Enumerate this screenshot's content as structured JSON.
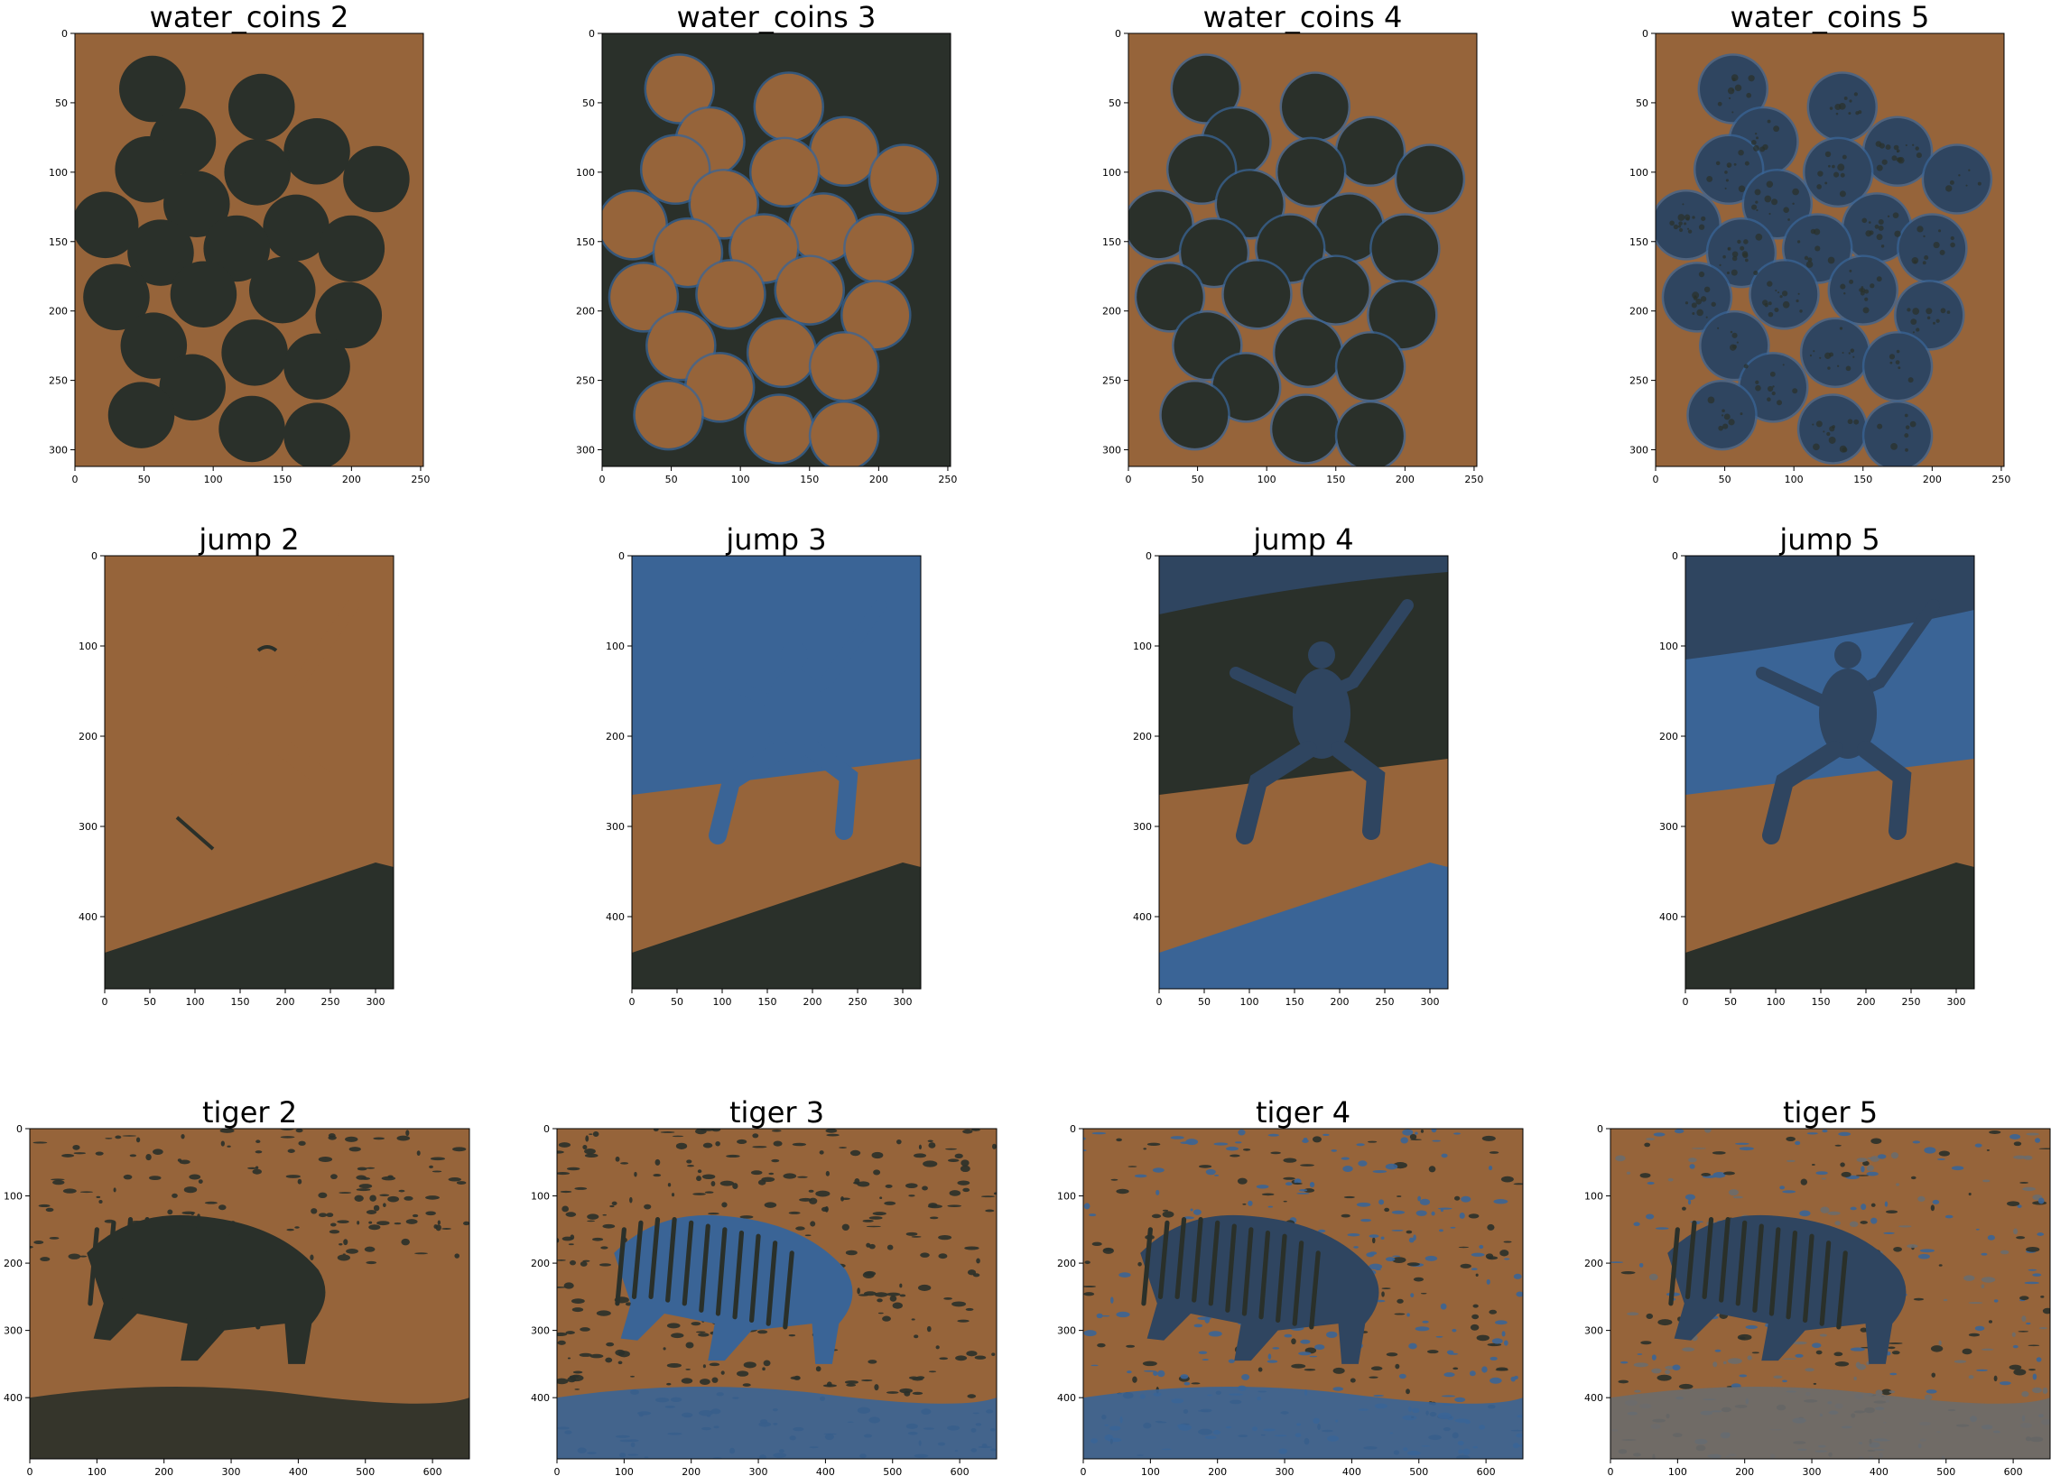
{
  "colors": {
    "background": "#ffffff",
    "brown": "#96643a",
    "dark": "#2a302a",
    "blue": "#3a6496",
    "slate": "#2f4560",
    "gray": "#6b6b6b"
  },
  "chart_data": [
    {
      "type": "heatmap",
      "title": "water_coins 2",
      "image": "coins",
      "k": 2,
      "x_ticks": [
        "0",
        "50",
        "100",
        "150",
        "200",
        "250"
      ],
      "y_ticks": [
        "0",
        "50",
        "100",
        "150",
        "200",
        "250",
        "300"
      ],
      "xlim": [
        0,
        252
      ],
      "ylim": [
        312,
        0
      ],
      "palette": {
        "bg": "brown",
        "coin": "dark"
      }
    },
    {
      "type": "heatmap",
      "title": "water_coins 3",
      "image": "coins",
      "k": 3,
      "x_ticks": [
        "0",
        "50",
        "100",
        "150",
        "200",
        "250"
      ],
      "y_ticks": [
        "0",
        "50",
        "100",
        "150",
        "200",
        "250",
        "300"
      ],
      "xlim": [
        0,
        252
      ],
      "ylim": [
        312,
        0
      ],
      "palette": {
        "bg": "dark",
        "coin": "brown",
        "edge": "blue"
      }
    },
    {
      "type": "heatmap",
      "title": "water_coins 4",
      "image": "coins",
      "k": 4,
      "x_ticks": [
        "0",
        "50",
        "100",
        "150",
        "200",
        "250"
      ],
      "y_ticks": [
        "0",
        "50",
        "100",
        "150",
        "200",
        "250",
        "300"
      ],
      "xlim": [
        0,
        252
      ],
      "ylim": [
        312,
        0
      ],
      "palette": {
        "bg": "brown",
        "coin": "dark",
        "edge": "blue"
      }
    },
    {
      "type": "heatmap",
      "title": "water_coins 5",
      "image": "coins",
      "k": 5,
      "x_ticks": [
        "0",
        "50",
        "100",
        "150",
        "200",
        "250"
      ],
      "y_ticks": [
        "0",
        "50",
        "100",
        "150",
        "200",
        "250",
        "300"
      ],
      "xlim": [
        0,
        252
      ],
      "ylim": [
        312,
        0
      ],
      "palette": {
        "bg": "brown",
        "coin": "slate",
        "edge": "blue"
      }
    },
    {
      "type": "heatmap",
      "title": "jump 2",
      "image": "jump",
      "k": 2,
      "x_ticks": [
        "0",
        "50",
        "100",
        "150",
        "200",
        "250",
        "300"
      ],
      "y_ticks": [
        "0",
        "100",
        "200",
        "300",
        "400"
      ],
      "xlim": [
        0,
        320
      ],
      "ylim": [
        480,
        0
      ],
      "palette": {
        "sky": "brown",
        "ground": "brown",
        "shadow": "dark",
        "person": "brown"
      }
    },
    {
      "type": "heatmap",
      "title": "jump 3",
      "image": "jump",
      "k": 3,
      "x_ticks": [
        "0",
        "50",
        "100",
        "150",
        "200",
        "250",
        "300"
      ],
      "y_ticks": [
        "0",
        "100",
        "200",
        "300",
        "400"
      ],
      "xlim": [
        0,
        320
      ],
      "ylim": [
        480,
        0
      ],
      "palette": {
        "sky": "blue",
        "ground": "brown",
        "shadow": "dark",
        "person": "blue"
      }
    },
    {
      "type": "heatmap",
      "title": "jump 4",
      "image": "jump",
      "k": 4,
      "x_ticks": [
        "0",
        "50",
        "100",
        "150",
        "200",
        "250",
        "300"
      ],
      "y_ticks": [
        "0",
        "100",
        "200",
        "300",
        "400"
      ],
      "xlim": [
        0,
        320
      ],
      "ylim": [
        480,
        0
      ],
      "palette": {
        "top": "slate",
        "sky": "dark",
        "ground": "brown",
        "shadow": "blue",
        "person": "slate"
      }
    },
    {
      "type": "heatmap",
      "title": "jump 5",
      "image": "jump",
      "k": 5,
      "x_ticks": [
        "0",
        "50",
        "100",
        "150",
        "200",
        "250",
        "300"
      ],
      "y_ticks": [
        "0",
        "100",
        "200",
        "300",
        "400"
      ],
      "xlim": [
        0,
        320
      ],
      "ylim": [
        480,
        0
      ],
      "palette": {
        "top": "slate",
        "sky": "blue",
        "ground": "brown",
        "shadow": "dark",
        "person": "slate"
      }
    },
    {
      "type": "heatmap",
      "title": "tiger 2",
      "image": "tiger",
      "k": 2,
      "x_ticks": [
        "0",
        "100",
        "200",
        "300",
        "400",
        "500",
        "600"
      ],
      "y_ticks": [
        "0",
        "100",
        "200",
        "300",
        "400"
      ],
      "xlim": [
        0,
        655
      ],
      "ylim": [
        491,
        0
      ],
      "palette": {
        "bg": "brown",
        "tiger": "dark",
        "stripe": "dark",
        "ground": "dark"
      }
    },
    {
      "type": "heatmap",
      "title": "tiger 3",
      "image": "tiger",
      "k": 3,
      "x_ticks": [
        "0",
        "100",
        "200",
        "300",
        "400",
        "500",
        "600"
      ],
      "y_ticks": [
        "0",
        "100",
        "200",
        "300",
        "400"
      ],
      "xlim": [
        0,
        655
      ],
      "ylim": [
        491,
        0
      ],
      "palette": {
        "bg": "brown",
        "tiger": "blue",
        "stripe": "dark",
        "ground": "blue"
      }
    },
    {
      "type": "heatmap",
      "title": "tiger 4",
      "image": "tiger",
      "k": 4,
      "x_ticks": [
        "0",
        "100",
        "200",
        "300",
        "400",
        "500",
        "600"
      ],
      "y_ticks": [
        "0",
        "100",
        "200",
        "300",
        "400"
      ],
      "xlim": [
        0,
        655
      ],
      "ylim": [
        491,
        0
      ],
      "palette": {
        "bg": "brown",
        "tiger": "slate",
        "stripe": "dark",
        "ground": "blue"
      }
    },
    {
      "type": "heatmap",
      "title": "tiger 5",
      "image": "tiger",
      "k": 5,
      "x_ticks": [
        "0",
        "100",
        "200",
        "300",
        "400",
        "500",
        "600"
      ],
      "y_ticks": [
        "0",
        "100",
        "200",
        "300",
        "400"
      ],
      "xlim": [
        0,
        655
      ],
      "ylim": [
        491,
        0
      ],
      "palette": {
        "bg": "brown",
        "tiger": "slate",
        "stripe": "dark",
        "ground": "gray"
      }
    }
  ]
}
